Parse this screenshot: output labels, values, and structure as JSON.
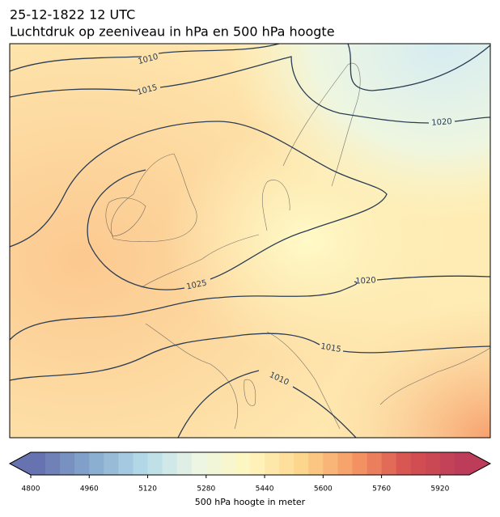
{
  "header": {
    "date": "25-12-1822 12 UTC",
    "title": "Luchtdruk op zeeniveau in hPa en 500 hPa hoogte"
  },
  "map": {
    "contour_labels": [
      "1010",
      "1015",
      "1020",
      "1025",
      "1020",
      "1015",
      "1010"
    ]
  },
  "colorbar": {
    "label": "500 hPa hoogte in meter",
    "range": [
      4800,
      6000
    ],
    "ticks": [
      4800,
      4960,
      5120,
      5280,
      5440,
      5600,
      5760,
      5920
    ]
  }
}
